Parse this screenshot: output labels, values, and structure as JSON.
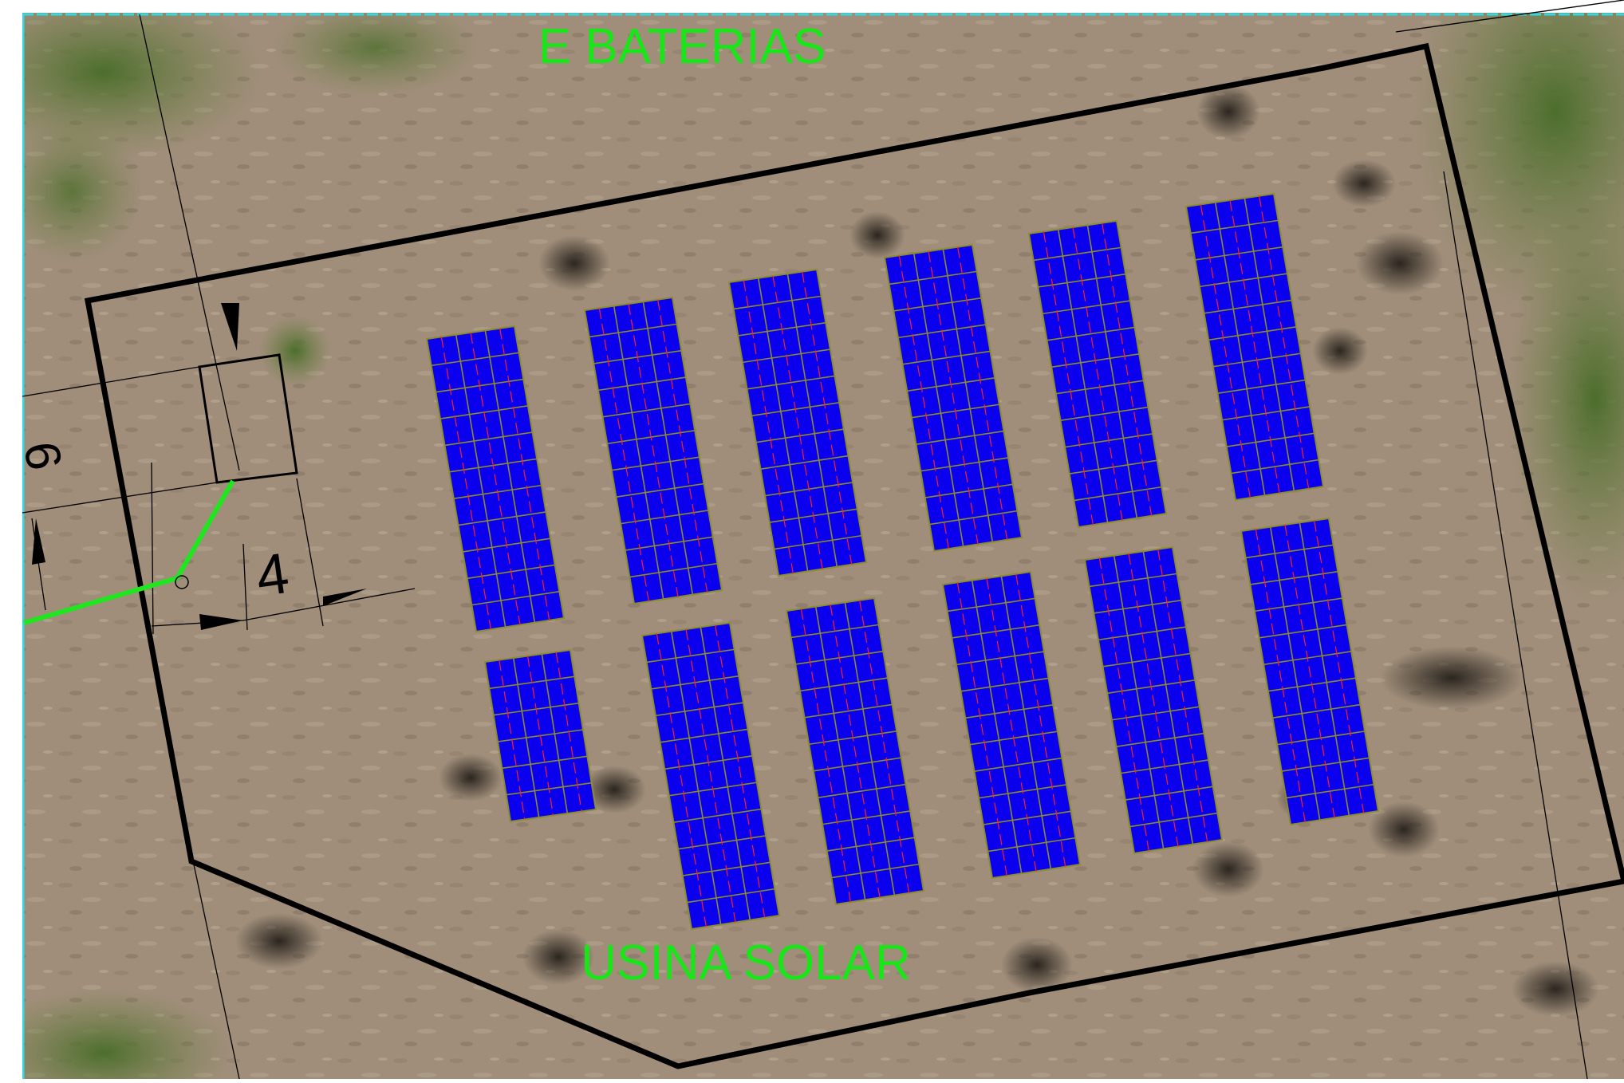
{
  "labels": {
    "top": "E BATERIAS",
    "bottom": "USINA SOLAR",
    "dimension_vertical": "9",
    "dimension_horizontal": "4"
  },
  "colors": {
    "ground": "#a08e7a",
    "label_green": "#19e619",
    "cable_green": "#1fe61f",
    "panel_fill": "#0a00ee",
    "panel_grid": "#8c8c2a",
    "panel_string": "#ff2020",
    "boundary": "#000000",
    "frame_cyan": "#37d7e0"
  },
  "arrays": {
    "total": 12,
    "top_row": [
      {
        "columns": 3,
        "rows": 11
      },
      {
        "columns": 3,
        "rows": 11
      },
      {
        "columns": 3,
        "rows": 11
      },
      {
        "columns": 3,
        "rows": 11
      },
      {
        "columns": 3,
        "rows": 11
      },
      {
        "columns": 3,
        "rows": 11
      }
    ],
    "bottom_row": [
      {
        "columns": 3,
        "rows": 6
      },
      {
        "columns": 3,
        "rows": 11
      },
      {
        "columns": 3,
        "rows": 11
      },
      {
        "columns": 3,
        "rows": 11
      },
      {
        "columns": 3,
        "rows": 11
      },
      {
        "columns": 3,
        "rows": 11
      }
    ]
  }
}
